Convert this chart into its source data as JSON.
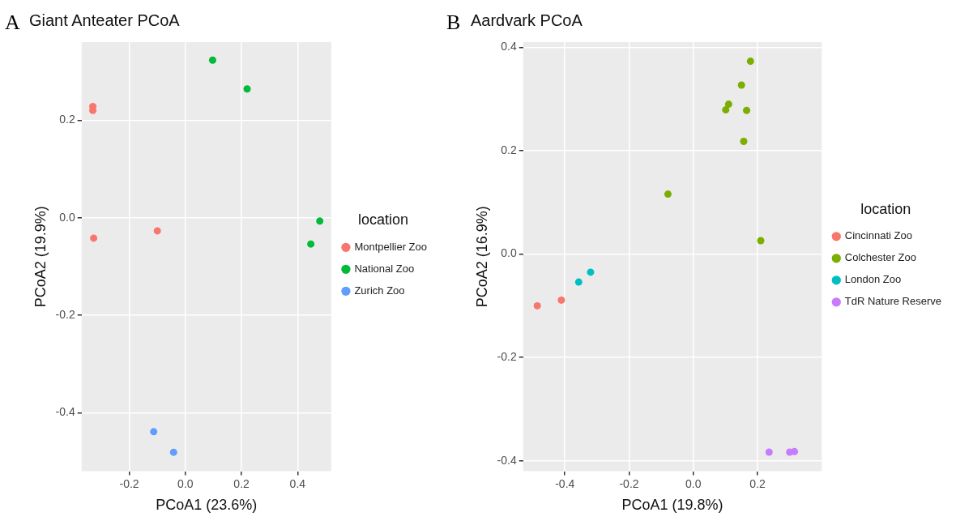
{
  "chart_data": [
    {
      "type": "scatter",
      "title": "Giant Anteater PCoA",
      "xlabel": "PCoA1 (23.6%)",
      "ylabel": "PCoA2 (19.9%)",
      "legend_title": "location",
      "legend": "right",
      "grid": true,
      "marker": "circle",
      "annotations": [
        "A"
      ],
      "xlim": [
        -0.37,
        0.52
      ],
      "ylim": [
        -0.52,
        0.36
      ],
      "xticks": [
        -0.2,
        {
          "value": 0,
          "label": "0.0"
        },
        0.2,
        0.4
      ],
      "yticks": [
        -0.4,
        -0.2,
        {
          "value": 0,
          "label": "0.0"
        },
        0.2
      ],
      "series": [
        {
          "name": "Montpellier Zoo",
          "color": "#f8766d",
          "x": [
            -0.33,
            -0.33,
            -0.327,
            -0.1
          ],
          "values": [
            0.228,
            0.22,
            -0.042,
            -0.027
          ]
        },
        {
          "name": "National Zoo",
          "color": "#00ba38",
          "x": [
            0.097,
            0.22,
            0.479,
            0.447
          ],
          "values": [
            0.323,
            0.264,
            -0.007,
            -0.054
          ]
        },
        {
          "name": "Zurich Zoo",
          "color": "#619cff",
          "x": [
            -0.113,
            -0.042
          ],
          "values": [
            -0.439,
            -0.481
          ]
        }
      ]
    },
    {
      "type": "scatter",
      "title": "Aardvark PCoA",
      "xlabel": "PCoA1 (19.8%)",
      "ylabel": "PCoA2 (16.9%)",
      "legend_title": "location",
      "legend": "right",
      "grid": true,
      "marker": "circle",
      "annotations": [
        "B"
      ],
      "xlim": [
        -0.53,
        0.4
      ],
      "ylim": [
        -0.42,
        0.41
      ],
      "xticks": [
        -0.4,
        -0.2,
        {
          "value": 0,
          "label": "0.0"
        },
        0.2
      ],
      "yticks": [
        -0.4,
        -0.2,
        {
          "value": 0,
          "label": "0.0"
        },
        0.2,
        0.4
      ],
      "series": [
        {
          "name": "Cincinnati Zoo",
          "color": "#f8766d",
          "x": [
            -0.486,
            -0.411
          ],
          "values": [
            -0.1,
            -0.089
          ]
        },
        {
          "name": "Colchester Zoo",
          "color": "#7cae00",
          "x": [
            0.178,
            0.15,
            0.11,
            0.101,
            0.166,
            0.157,
            -0.079,
            0.21
          ],
          "values": [
            0.373,
            0.327,
            0.29,
            0.279,
            0.278,
            0.218,
            0.116,
            0.026
          ]
        },
        {
          "name": "London Zoo",
          "color": "#00bfc4",
          "x": [
            -0.357,
            -0.32
          ],
          "values": [
            -0.054,
            -0.035
          ]
        },
        {
          "name": "TdR Nature Reserve",
          "color": "#c77cff",
          "x": [
            0.236,
            0.3,
            0.315
          ],
          "values": [
            -0.383,
            -0.383,
            -0.382
          ]
        }
      ]
    }
  ]
}
